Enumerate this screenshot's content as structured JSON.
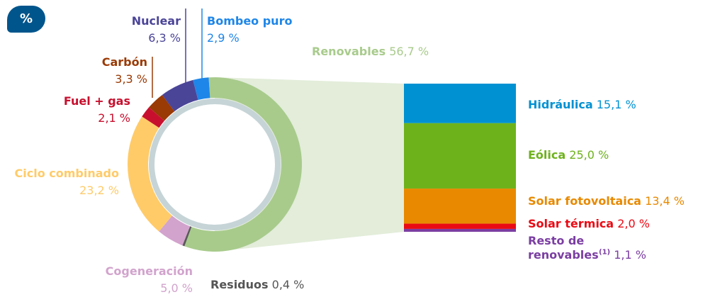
{
  "badge": "%",
  "chart_data": [
    {
      "type": "pie",
      "categories": [
        "Renovables",
        "Residuos",
        "Cogeneración",
        "Ciclo combinado",
        "Fuel + gas",
        "Carbón",
        "Nuclear",
        "Bombeo puro"
      ],
      "values": [
        56.7,
        0.4,
        5.0,
        23.2,
        2.1,
        3.3,
        6.3,
        2.9
      ],
      "value_labels": [
        "56,7 %",
        "0,4 %",
        "5,0 %",
        "23,2 %",
        "2,1 %",
        "3,3 %",
        "6,3 %",
        "2,9 %"
      ],
      "colors": [
        "#a8cb8c",
        "#5a5a5a",
        "#d2a3cd",
        "#ffcb69",
        "#c8102e",
        "#9a3a05",
        "#4b4598",
        "#1e86e8"
      ]
    },
    {
      "type": "bar",
      "stacked": true,
      "categories": [
        "Hidráulica",
        "Eólica",
        "Solar fotovoltaica",
        "Solar térmica",
        "Resto de renovables"
      ],
      "category_notes": [
        null,
        null,
        null,
        null,
        "(1)"
      ],
      "values": [
        15.1,
        25.0,
        13.4,
        2.0,
        1.1
      ],
      "value_labels": [
        "15,1 %",
        "25,0 %",
        "13,4 %",
        "2,0 %",
        "1,1 %"
      ],
      "colors": [
        "#0091d2",
        "#6db21b",
        "#e88900",
        "#ea0a14",
        "#7b3ea2"
      ]
    }
  ]
}
